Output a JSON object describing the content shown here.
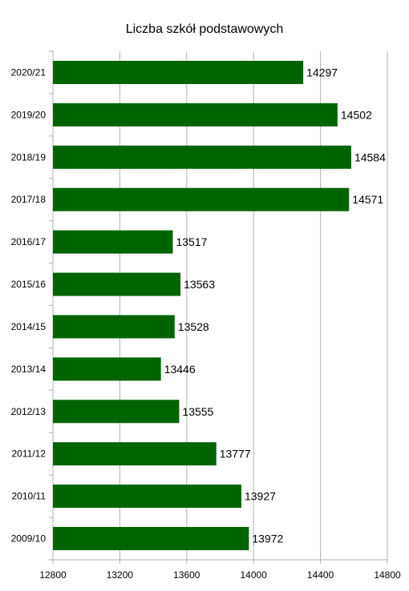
{
  "chart_data": {
    "type": "bar",
    "orientation": "horizontal",
    "title": "Liczba szkół podstawowych",
    "categories": [
      "2020/21",
      "2019/20",
      "2018/19",
      "2017/18",
      "2016/17",
      "2015/16",
      "2014/15",
      "2013/14",
      "2012/13",
      "2011/12",
      "2010/11",
      "2009/10"
    ],
    "values": [
      14297,
      14502,
      14584,
      14571,
      13517,
      13563,
      13528,
      13446,
      13555,
      13777,
      13927,
      13972
    ],
    "x_ticks": [
      "12800",
      "13200",
      "13600",
      "14000",
      "14400",
      "14800"
    ],
    "xlim": [
      12800,
      14800
    ],
    "bar_color": "#006400",
    "grid": true,
    "legend": "none"
  }
}
